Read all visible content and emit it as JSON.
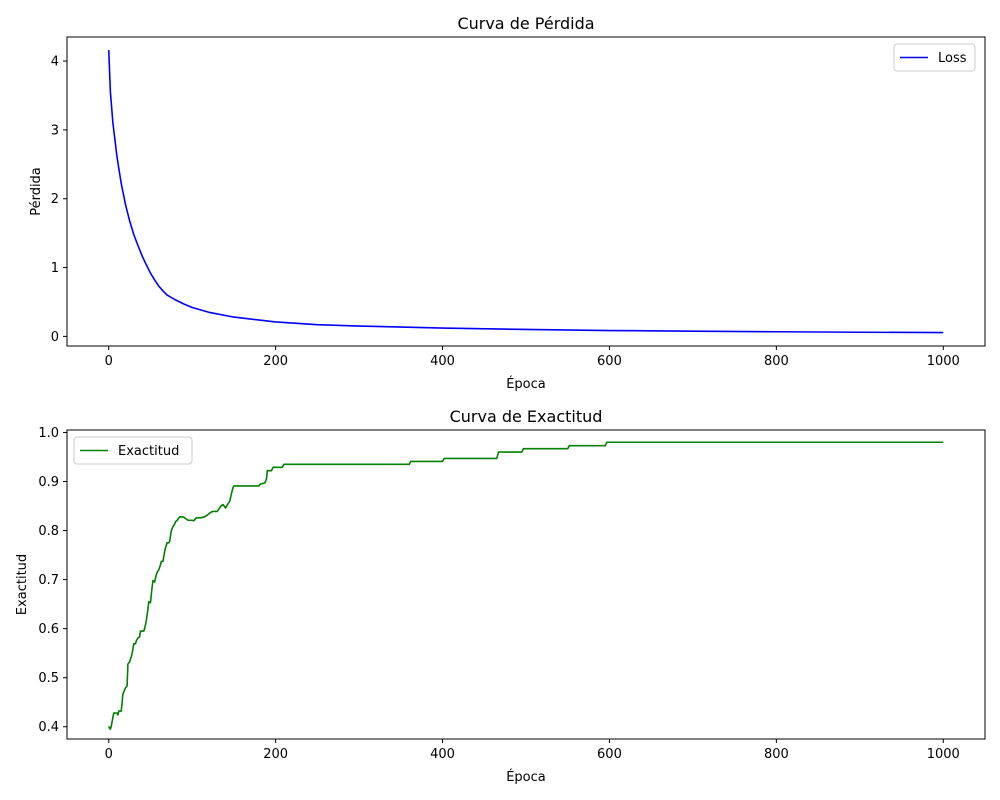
{
  "chart_data": [
    {
      "type": "line",
      "title": "Curva de Pérdida",
      "xlabel": "Época",
      "ylabel": "Pérdida",
      "xlim": [
        -50,
        1050
      ],
      "ylim": [
        -0.14,
        4.35
      ],
      "xticks": [
        0,
        200,
        400,
        600,
        800,
        1000
      ],
      "yticks": [
        0,
        1,
        2,
        3,
        4
      ],
      "grid": false,
      "legend": "upper right",
      "series": [
        {
          "name": "Loss",
          "color": "#0000ff",
          "x": [
            0,
            2,
            5,
            10,
            15,
            20,
            25,
            30,
            35,
            40,
            45,
            50,
            55,
            60,
            65,
            70,
            80,
            90,
            100,
            120,
            150,
            200,
            250,
            300,
            400,
            500,
            600,
            700,
            800,
            900,
            1000
          ],
          "y": [
            4.16,
            3.55,
            3.1,
            2.6,
            2.22,
            1.92,
            1.68,
            1.48,
            1.32,
            1.17,
            1.04,
            0.92,
            0.82,
            0.73,
            0.66,
            0.6,
            0.53,
            0.47,
            0.42,
            0.35,
            0.28,
            0.21,
            0.17,
            0.15,
            0.12,
            0.1,
            0.085,
            0.075,
            0.067,
            0.06,
            0.055
          ]
        }
      ]
    },
    {
      "type": "line",
      "title": "Curva de Exactitud",
      "xlabel": "Época",
      "ylabel": "Exactitud",
      "xlim": [
        -50,
        1050
      ],
      "ylim": [
        0.375,
        1.005
      ],
      "xticks": [
        0,
        200,
        400,
        600,
        800,
        1000
      ],
      "yticks": [
        0.4,
        0.5,
        0.6,
        0.7,
        0.8,
        0.9,
        1.0
      ],
      "grid": false,
      "legend": "upper left",
      "series": [
        {
          "name": "Exactitud",
          "color": "#008000",
          "x": [
            0,
            1,
            2,
            3,
            6,
            10,
            11,
            12,
            15,
            17,
            18,
            20,
            22,
            23,
            25,
            27,
            28,
            30,
            32,
            33,
            35,
            37,
            38,
            40,
            42,
            43,
            45,
            47,
            48,
            50,
            52,
            53,
            55,
            57,
            58,
            60,
            62,
            63,
            65,
            67,
            68,
            70,
            72,
            73,
            75,
            77,
            79,
            80,
            82,
            85,
            88,
            90,
            95,
            100,
            102,
            105,
            110,
            115,
            120,
            122,
            125,
            130,
            135,
            137,
            140,
            142,
            145,
            147,
            149,
            150,
            152,
            180,
            182,
            187,
            189,
            190,
            195,
            197,
            200,
            208,
            210,
            212,
            360,
            362,
            400,
            402,
            465,
            467,
            495,
            497,
            550,
            552,
            595,
            597,
            1000
          ],
          "y": [
            0.401,
            0.397,
            0.395,
            0.401,
            0.428,
            0.428,
            0.424,
            0.432,
            0.432,
            0.467,
            0.471,
            0.479,
            0.483,
            0.528,
            0.532,
            0.543,
            0.549,
            0.569,
            0.569,
            0.575,
            0.581,
            0.583,
            0.595,
            0.595,
            0.595,
            0.6,
            0.616,
            0.64,
            0.655,
            0.653,
            0.685,
            0.698,
            0.695,
            0.71,
            0.715,
            0.72,
            0.73,
            0.737,
            0.737,
            0.757,
            0.765,
            0.775,
            0.775,
            0.778,
            0.8,
            0.808,
            0.813,
            0.818,
            0.821,
            0.828,
            0.828,
            0.827,
            0.821,
            0.821,
            0.82,
            0.826,
            0.826,
            0.828,
            0.834,
            0.837,
            0.839,
            0.839,
            0.851,
            0.853,
            0.846,
            0.852,
            0.86,
            0.875,
            0.888,
            0.891,
            0.891,
            0.891,
            0.895,
            0.897,
            0.905,
            0.922,
            0.922,
            0.929,
            0.929,
            0.929,
            0.935,
            0.935,
            0.935,
            0.941,
            0.941,
            0.947,
            0.947,
            0.96,
            0.96,
            0.967,
            0.967,
            0.973,
            0.973,
            0.98,
            0.98
          ]
        }
      ]
    }
  ]
}
